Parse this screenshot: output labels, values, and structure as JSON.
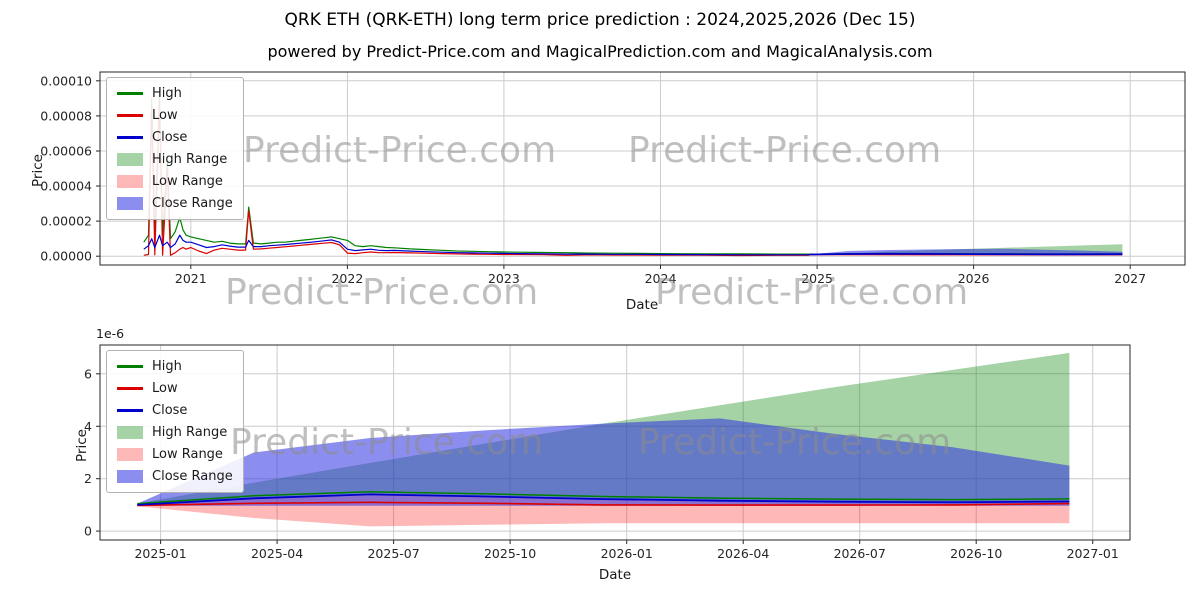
{
  "title": "QRK ETH (QRK-ETH) long term price prediction : 2024,2025,2026 (Dec 15)",
  "subtitle": "powered by Predict-Price.com and MagicalPrediction.com and MagicalAnalysis.com",
  "watermark": "Predict-Price.com",
  "colors": {
    "high": "#008000",
    "low": "#dd0000",
    "close": "#0000cd",
    "high_range": "rgba(0,128,0,0.35)",
    "low_range": "rgba(255,0,0,0.28)",
    "close_range": "rgba(45,50,225,0.55)",
    "grid": "#cccccc",
    "spine": "#262626",
    "tick_text": "#262626"
  },
  "chart_data": [
    {
      "type": "line",
      "title": "",
      "xlabel": "Date",
      "ylabel": "Price",
      "y_unit": "1e-6",
      "xlim": [
        2020.42,
        2027.35
      ],
      "ylim": [
        -5,
        105
      ],
      "x_ticks": [
        2021,
        2022,
        2023,
        2024,
        2025,
        2026,
        2027
      ],
      "x_tick_labels": [
        "2021",
        "2022",
        "2023",
        "2024",
        "2025",
        "2026",
        "2027"
      ],
      "y_ticks": [
        0,
        20,
        40,
        60,
        80,
        100
      ],
      "y_tick_labels": [
        "0.00000",
        "0.00002",
        "0.00004",
        "0.00006",
        "0.00008",
        "0.00010"
      ],
      "legend": [
        {
          "label": "High",
          "type": "line",
          "color": "#008000"
        },
        {
          "label": "Low",
          "type": "line",
          "color": "#dd0000"
        },
        {
          "label": "Close",
          "type": "line",
          "color": "#0000cd"
        },
        {
          "label": "High Range",
          "type": "patch",
          "color": "rgba(0,128,0,0.35)"
        },
        {
          "label": "Low Range",
          "type": "patch",
          "color": "rgba(255,0,0,0.28)"
        },
        {
          "label": "Close Range",
          "type": "patch",
          "color": "rgba(45,50,225,0.55)"
        }
      ],
      "history": {
        "x": [
          2020.7,
          2020.73,
          2020.75,
          2020.77,
          2020.8,
          2020.82,
          2020.85,
          2020.87,
          2020.9,
          2020.93,
          2020.95,
          2020.97,
          2021.0,
          2021.05,
          2021.1,
          2021.15,
          2021.2,
          2021.25,
          2021.3,
          2021.35,
          2021.37,
          2021.4,
          2021.45,
          2021.5,
          2021.55,
          2021.6,
          2021.65,
          2021.7,
          2021.75,
          2021.8,
          2021.85,
          2021.9,
          2021.95,
          2022.0,
          2022.05,
          2022.1,
          2022.15,
          2022.2,
          2022.25,
          2022.3,
          2022.4,
          2022.5,
          2022.6,
          2022.7,
          2022.8,
          2022.9,
          2023.0,
          2023.1,
          2023.25,
          2023.4,
          2023.55,
          2023.7,
          2023.85,
          2024.0,
          2024.25,
          2024.5,
          2024.75,
          2024.95
        ],
        "high": [
          8,
          12,
          90,
          10,
          92,
          12,
          55,
          10,
          14,
          22,
          15,
          12,
          11,
          10,
          9,
          8,
          8.5,
          7.5,
          7,
          7,
          28,
          7.5,
          7,
          7.5,
          8,
          8,
          8.5,
          9,
          9.5,
          10,
          10.5,
          11,
          10,
          9,
          6,
          5.5,
          6,
          5.5,
          5,
          4.8,
          4.2,
          3.8,
          3.4,
          3,
          2.8,
          2.6,
          2.4,
          2.3,
          2.1,
          2,
          1.8,
          1.7,
          1.6,
          1.5,
          1.4,
          1.3,
          1.2,
          1.2
        ],
        "low": [
          0.5,
          1,
          85,
          0.8,
          88,
          0.6,
          50,
          0.5,
          2,
          4,
          5,
          4,
          5,
          3,
          1.5,
          3.5,
          4.5,
          4,
          3.5,
          3.5,
          26,
          4,
          4.2,
          4.6,
          5,
          5.4,
          5.8,
          6.2,
          6.6,
          7,
          7.4,
          7.8,
          6.5,
          1.8,
          1.5,
          2,
          2.4,
          2,
          2,
          2.1,
          1.9,
          1.7,
          1.5,
          1.3,
          1.2,
          1.1,
          1,
          1,
          0.9,
          0.5,
          0.8,
          0.7,
          0.7,
          0.6,
          0.6,
          0.4,
          0.5,
          0.5
        ],
        "close": [
          4,
          6,
          10,
          5,
          12,
          6,
          8,
          5,
          7,
          12,
          9,
          8,
          8,
          6.5,
          5,
          5.5,
          6.5,
          5.8,
          5.2,
          5.2,
          9,
          5.5,
          5.5,
          6,
          6.3,
          6.6,
          7,
          7.4,
          7.8,
          8.3,
          8.8,
          9.3,
          8,
          4,
          3.2,
          3.6,
          4,
          3.4,
          3.2,
          3.3,
          2.9,
          2.6,
          2.3,
          2,
          1.9,
          1.7,
          1.6,
          1.5,
          1.4,
          1.2,
          1.2,
          1.1,
          1.1,
          1,
          0.9,
          0.8,
          0.8,
          0.8
        ]
      },
      "forecast": {
        "x": [
          2024.95,
          2025.2,
          2025.45,
          2025.7,
          2025.95,
          2026.2,
          2026.45,
          2026.7,
          2026.95
        ],
        "high_top": [
          1.05,
          1.85,
          2.6,
          3.35,
          4.1,
          4.8,
          5.5,
          6.15,
          6.8
        ],
        "close_top": [
          1.05,
          3.0,
          3.55,
          3.85,
          4.1,
          4.3,
          3.7,
          3.2,
          2.5
        ],
        "close_bottom": [
          0.97,
          0.97,
          0.97,
          0.97,
          0.97,
          0.97,
          0.97,
          0.97,
          0.97
        ],
        "low_bottom": [
          0.95,
          0.5,
          0.18,
          0.24,
          0.3,
          0.3,
          0.3,
          0.3,
          0.3
        ],
        "high": [
          1.05,
          1.35,
          1.5,
          1.42,
          1.32,
          1.26,
          1.22,
          1.2,
          1.23
        ],
        "low": [
          0.98,
          1.06,
          1.1,
          1.06,
          1.0,
          0.99,
          0.99,
          1.0,
          1.05
        ],
        "close": [
          1.0,
          1.25,
          1.4,
          1.32,
          1.22,
          1.16,
          1.12,
          1.1,
          1.13
        ]
      }
    },
    {
      "type": "line",
      "title": "",
      "xlabel": "Date",
      "ylabel": "Price",
      "offset_text": "1e-6",
      "y_unit": "1e-6",
      "xlim": [
        2024.87,
        2027.08
      ],
      "ylim": [
        -0.34,
        7.1
      ],
      "x_ticks": [
        2025.0,
        2025.25,
        2025.5,
        2025.75,
        2026.0,
        2026.25,
        2026.5,
        2026.75,
        2027.0
      ],
      "x_tick_labels": [
        "2025-01",
        "2025-04",
        "2025-07",
        "2025-10",
        "2026-01",
        "2026-04",
        "2026-07",
        "2026-10",
        "2027-01"
      ],
      "y_ticks": [
        0,
        2,
        4,
        6
      ],
      "y_tick_labels": [
        "0",
        "2",
        "4",
        "6"
      ],
      "legend": [
        {
          "label": "High",
          "type": "line",
          "color": "#008000"
        },
        {
          "label": "Low",
          "type": "line",
          "color": "#dd0000"
        },
        {
          "label": "Close",
          "type": "line",
          "color": "#0000cd"
        },
        {
          "label": "High Range",
          "type": "patch",
          "color": "rgba(0,128,0,0.35)"
        },
        {
          "label": "Low Range",
          "type": "patch",
          "color": "rgba(255,0,0,0.28)"
        },
        {
          "label": "Close Range",
          "type": "patch",
          "color": "rgba(45,50,225,0.55)"
        }
      ],
      "forecast": {
        "x": [
          2024.95,
          2025.2,
          2025.45,
          2025.7,
          2025.95,
          2026.2,
          2026.45,
          2026.7,
          2026.95
        ],
        "high_top": [
          1.05,
          1.85,
          2.6,
          3.35,
          4.1,
          4.8,
          5.5,
          6.15,
          6.8
        ],
        "close_top": [
          1.05,
          3.0,
          3.55,
          3.85,
          4.1,
          4.3,
          3.7,
          3.2,
          2.5
        ],
        "close_bottom": [
          0.97,
          0.97,
          0.97,
          0.97,
          0.97,
          0.97,
          0.97,
          0.97,
          0.97
        ],
        "low_bottom": [
          0.95,
          0.5,
          0.18,
          0.24,
          0.3,
          0.3,
          0.3,
          0.3,
          0.3
        ],
        "high": [
          1.05,
          1.35,
          1.5,
          1.42,
          1.32,
          1.26,
          1.22,
          1.2,
          1.23
        ],
        "low": [
          0.98,
          1.06,
          1.1,
          1.06,
          1.0,
          0.99,
          0.99,
          1.0,
          1.05
        ],
        "close": [
          1.0,
          1.25,
          1.4,
          1.32,
          1.22,
          1.16,
          1.12,
          1.1,
          1.13
        ]
      }
    }
  ]
}
